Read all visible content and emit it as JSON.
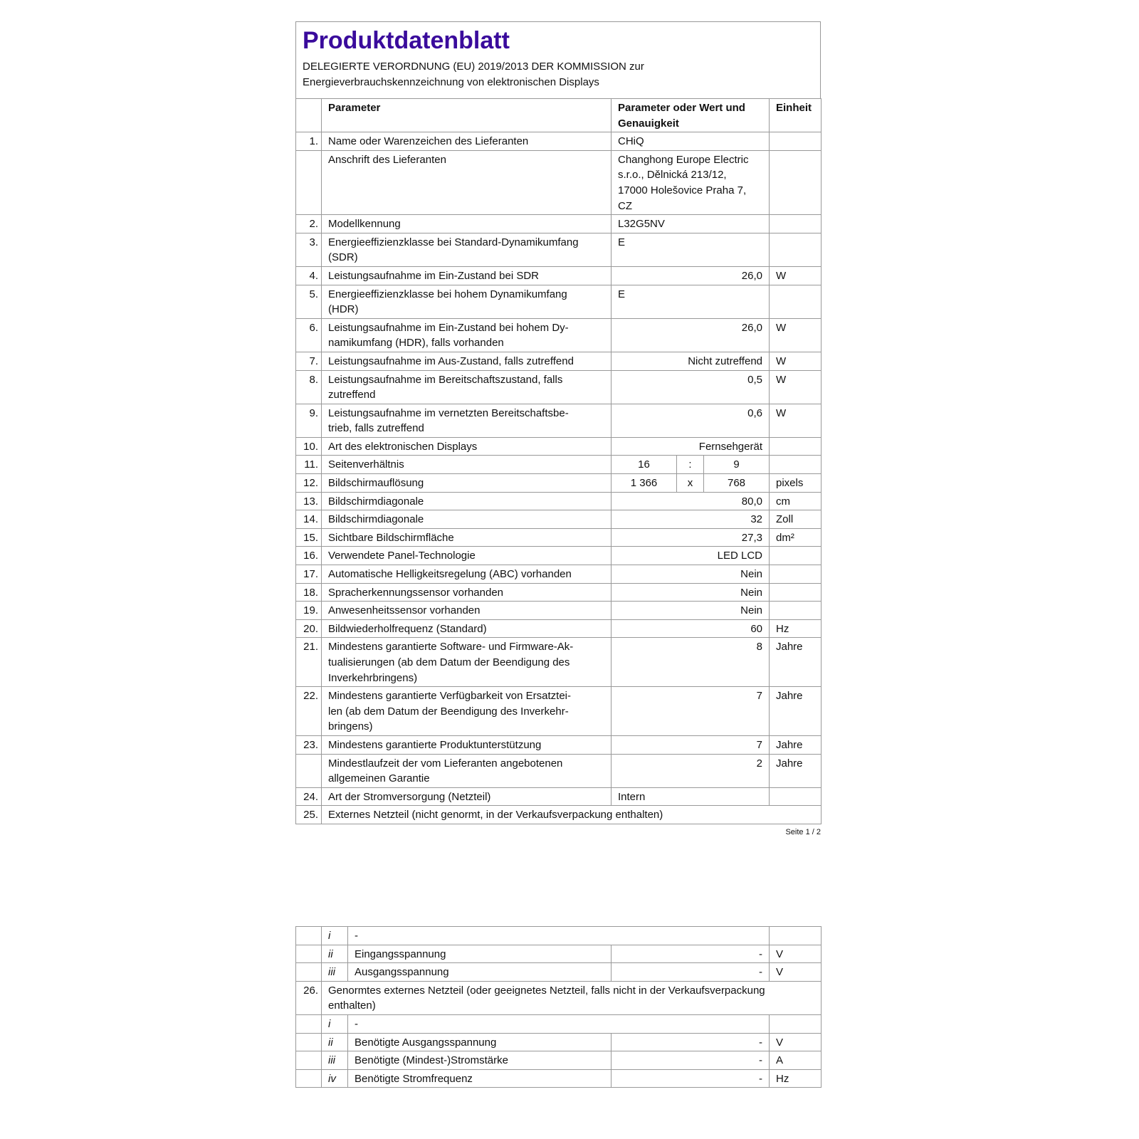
{
  "title": "Produktdatenblatt",
  "subtitle_lines": [
    "DELEGIERTE VERORDNUNG (EU) 2019/2013 DER KOMMISSION zur",
    "Energieverbrauchskennzeichnung von elektronischen Displays"
  ],
  "title_color": "#3a0b9c",
  "headers": {
    "num": "",
    "param": "Parameter",
    "value": "Parameter oder Wert und\nGenauigkeit",
    "unit": "Einheit"
  },
  "rows": [
    {
      "type": "n",
      "num": "1.",
      "param": "Name oder Warenzeichen des Lieferanten",
      "value": "CHiQ",
      "align": "left",
      "unit": ""
    },
    {
      "type": "n",
      "num": "",
      "param": "Anschrift des Lieferanten",
      "value": "Changhong Europe Electric\ns.r.o., Dělnická 213/12,\n17000 Holešovice Praha 7,\nCZ",
      "align": "left",
      "unit": ""
    },
    {
      "type": "n",
      "num": "2.",
      "param": "Modellkennung",
      "value": "L32G5NV",
      "align": "left",
      "unit": ""
    },
    {
      "type": "n",
      "num": "3.",
      "param": "Energieeffizienzklasse bei Standard-Dynamikumfang\n(SDR)",
      "value": "E",
      "align": "left",
      "unit": ""
    },
    {
      "type": "n",
      "num": "4.",
      "param": "Leistungsaufnahme im Ein-Zustand bei SDR",
      "value": "26,0",
      "align": "right",
      "unit": "W"
    },
    {
      "type": "n",
      "num": "5.",
      "param": "Energieeffizienzklasse bei hohem Dynamikumfang\n(HDR)",
      "value": "E",
      "align": "left",
      "unit": ""
    },
    {
      "type": "n",
      "num": "6.",
      "param": "Leistungsaufnahme im Ein-Zustand bei hohem Dy-\nnamikumfang (HDR), falls vorhanden",
      "value": "26,0",
      "align": "right",
      "unit": "W"
    },
    {
      "type": "n",
      "num": "7.",
      "param": "Leistungsaufnahme im Aus-Zustand, falls zutreffend",
      "value": "Nicht zutreffend",
      "align": "right",
      "unit": "W"
    },
    {
      "type": "n",
      "num": "8.",
      "param": "Leistungsaufnahme im Bereitschaftszustand, falls\nzutreffend",
      "value": "0,5",
      "align": "right",
      "unit": "W"
    },
    {
      "type": "n",
      "num": "9.",
      "param": "Leistungsaufnahme im vernetzten Bereitschaftsbe-\ntrieb, falls zutreffend",
      "value": "0,6",
      "align": "right",
      "unit": "W"
    },
    {
      "type": "n",
      "num": "10.",
      "param": "Art des elektronischen Displays",
      "value": "Fernsehgerät",
      "align": "right",
      "unit": ""
    },
    {
      "type": "s",
      "num": "11.",
      "param": "Seitenverhältnis",
      "v1": "16",
      "sep": ":",
      "v2": "9",
      "unit": ""
    },
    {
      "type": "s",
      "num": "12.",
      "param": "Bildschirmauflösung",
      "v1": "1 366",
      "sep": "x",
      "v2": "768",
      "unit": "pixels"
    },
    {
      "type": "n",
      "num": "13.",
      "param": "Bildschirmdiagonale",
      "value": "80,0",
      "align": "right",
      "unit": "cm"
    },
    {
      "type": "n",
      "num": "14.",
      "param": "Bildschirmdiagonale",
      "value": "32",
      "align": "right",
      "unit": "Zoll"
    },
    {
      "type": "n",
      "num": "15.",
      "param": "Sichtbare Bildschirmfläche",
      "value": "27,3",
      "align": "right",
      "unit": "dm²"
    },
    {
      "type": "n",
      "num": "16.",
      "param": "Verwendete Panel-Technologie",
      "value": "LED LCD",
      "align": "right",
      "unit": ""
    },
    {
      "type": "n",
      "num": "17.",
      "param": "Automatische Helligkeitsregelung (ABC) vorhanden",
      "value": "Nein",
      "align": "right",
      "unit": ""
    },
    {
      "type": "n",
      "num": "18.",
      "param": "Spracherkennungssensor vorhanden",
      "value": "Nein",
      "align": "right",
      "unit": ""
    },
    {
      "type": "n",
      "num": "19.",
      "param": "Anwesenheitssensor vorhanden",
      "value": "Nein",
      "align": "right",
      "unit": ""
    },
    {
      "type": "n",
      "num": "20.",
      "param": "Bildwiederholfrequenz (Standard)",
      "value": "60",
      "align": "right",
      "unit": "Hz"
    },
    {
      "type": "n",
      "num": "21.",
      "param": "Mindestens garantierte Software- und Firmware-Ak-\ntualisierungen (ab dem Datum der Beendigung des\nInverkehrbringens)",
      "value": "8",
      "align": "right",
      "unit": "Jahre"
    },
    {
      "type": "n",
      "num": "22.",
      "param": "Mindestens garantierte Verfügbarkeit von Ersatztei-\nlen (ab dem Datum der Beendigung des Inverkehr-\nbringens)",
      "value": "7",
      "align": "right",
      "unit": "Jahre"
    },
    {
      "type": "n",
      "num": "23.",
      "param": "Mindestens garantierte Produktunterstützung",
      "value": "7",
      "align": "right",
      "unit": "Jahre"
    },
    {
      "type": "n",
      "num": "",
      "param": "Mindestlaufzeit der vom Lieferanten angebotenen\nallgemeinen Garantie",
      "value": "2",
      "align": "right",
      "unit": "Jahre"
    },
    {
      "type": "n",
      "num": "24.",
      "param": "Art der Stromversorgung (Netzteil)",
      "value": "Intern",
      "align": "left",
      "unit": ""
    },
    {
      "type": "w",
      "num": "25.",
      "param": "Externes Netzteil (nicht genormt, in der Verkaufsverpackung enthalten)"
    }
  ],
  "footer": "Seite 1 / 2",
  "rows2": [
    {
      "type": "m",
      "sub": "i",
      "param": "-",
      "unit": ""
    },
    {
      "type": "n",
      "sub": "ii",
      "param": "Eingangsspannung",
      "value": "-",
      "unit": "V"
    },
    {
      "type": "n",
      "sub": "iii",
      "param": "Ausgangsspannung",
      "value": "-",
      "unit": "V"
    },
    {
      "type": "w",
      "num": "26.",
      "param": "Genormtes externes Netzteil (oder geeignetes Netzteil, falls nicht in der Verkaufsverpackung\nenthalten)"
    },
    {
      "type": "m",
      "sub": "i",
      "param": "-",
      "unit": ""
    },
    {
      "type": "n",
      "sub": "ii",
      "param": "Benötigte Ausgangsspannung",
      "value": "-",
      "unit": "V"
    },
    {
      "type": "n",
      "sub": "iii",
      "param": "Benötigte (Mindest-)Stromstärke",
      "value": "-",
      "unit": "A"
    },
    {
      "type": "n",
      "sub": "iv",
      "param": "Benötigte Stromfrequenz",
      "value": "-",
      "unit": "Hz"
    }
  ]
}
